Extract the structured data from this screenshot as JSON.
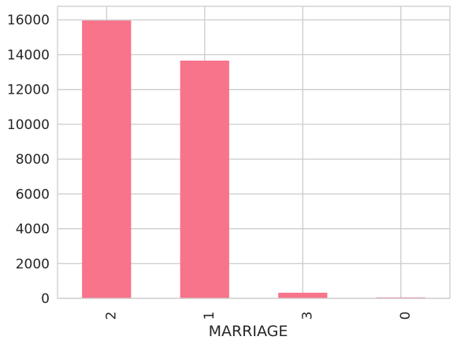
{
  "chart_data": {
    "type": "bar",
    "title": "",
    "xlabel": "MARRIAGE",
    "ylabel": "",
    "categories": [
      "2",
      "1",
      "3",
      "0"
    ],
    "values": [
      15964,
      13659,
      323,
      54
    ],
    "ylim": [
      0,
      16780
    ],
    "yticks": [
      0,
      2000,
      4000,
      6000,
      8000,
      10000,
      12000,
      14000,
      16000
    ],
    "grid": true,
    "x_tick_rotation": 90,
    "colors": {
      "bar": "#f7748a",
      "grid": "#cccccc",
      "frame": "#cccccc",
      "text": "#262626",
      "background": "#ffffff"
    }
  }
}
